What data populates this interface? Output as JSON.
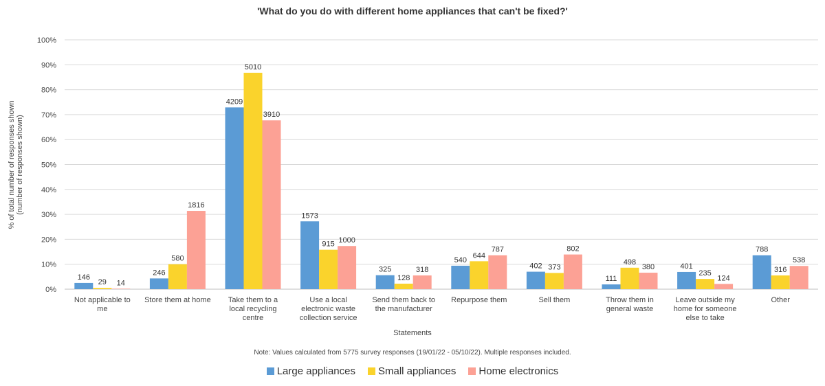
{
  "chart_data": {
    "type": "bar",
    "title": "'What do you do with different home appliances that can't be fixed?'",
    "xlabel": "Statements",
    "ylabel_lines": [
      "% of total number of responses shown",
      "(number of responses shown)"
    ],
    "note": "Note: Values calculated from 5775 survey responses (19/01/22 - 05/10/22). Multiple responses included.",
    "ylim": [
      0,
      100
    ],
    "yticks": [
      "0%",
      "10%",
      "20%",
      "30%",
      "40%",
      "50%",
      "60%",
      "70%",
      "80%",
      "90%",
      "100%"
    ],
    "grid": true,
    "legend_position": "bottom",
    "categories": [
      [
        "Not applicable to",
        "me"
      ],
      [
        "Store them at home"
      ],
      [
        "Take them to a",
        "local recycling",
        "centre"
      ],
      [
        "Use a local",
        "electronic waste",
        "collection service"
      ],
      [
        "Send them back to",
        "the manufacturer"
      ],
      [
        "Repurpose them"
      ],
      [
        "Sell them"
      ],
      [
        "Throw them in",
        "general waste"
      ],
      [
        "Leave outside my",
        "home for someone",
        "else to take"
      ],
      [
        "Other"
      ]
    ],
    "series": [
      {
        "name": "Large appliances",
        "color": "#5b9bd5",
        "percents": [
          2.5,
          4.3,
          72.9,
          27.2,
          5.6,
          9.4,
          7.0,
          1.9,
          6.9,
          13.6
        ],
        "labels": [
          "146",
          "246",
          "4209",
          "1573",
          "325",
          "540",
          "402",
          "111",
          "401",
          "788"
        ]
      },
      {
        "name": "Small appliances",
        "color": "#fad32c",
        "percents": [
          0.5,
          10.0,
          86.8,
          15.8,
          2.2,
          11.2,
          6.5,
          8.6,
          4.1,
          5.5
        ],
        "labels": [
          "29",
          "580",
          "5010",
          "915",
          "128",
          "644",
          "373",
          "498",
          "235",
          "316"
        ]
      },
      {
        "name": "Home electronics",
        "color": "#fca195",
        "percents": [
          0.2,
          31.4,
          67.7,
          17.3,
          5.5,
          13.6,
          13.9,
          6.6,
          2.1,
          9.3
        ],
        "labels": [
          "14",
          "1816",
          "3910",
          "1000",
          "318",
          "787",
          "802",
          "380",
          "124",
          "538"
        ]
      }
    ]
  }
}
